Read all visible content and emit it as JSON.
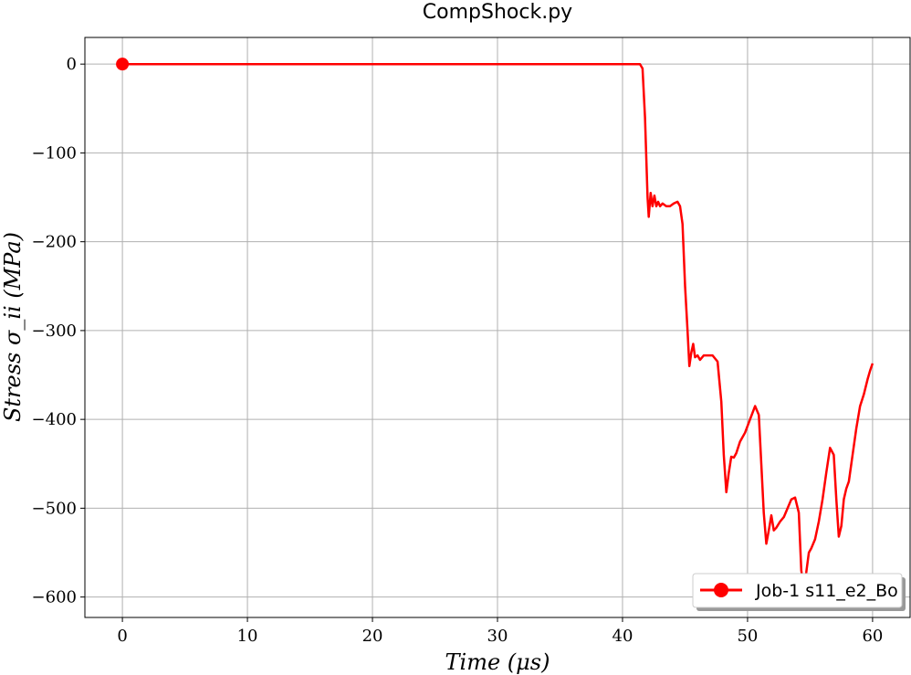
{
  "chart_data": {
    "type": "line",
    "title": "CompShock.py",
    "xlabel": "Time (μs)",
    "ylabel": "Stress σ_ii (MPa)",
    "xlim": [
      -3,
      63
    ],
    "ylim": [
      -623,
      30
    ],
    "x_ticks": [
      0,
      10,
      20,
      30,
      40,
      50,
      60
    ],
    "y_ticks": [
      0,
      -100,
      -200,
      -300,
      -400,
      -500,
      -600
    ],
    "x_tick_labels": [
      "0",
      "10",
      "20",
      "30",
      "40",
      "50",
      "60"
    ],
    "y_tick_labels": [
      "0",
      "−100",
      "−200",
      "−300",
      "−400",
      "−500",
      "−600"
    ],
    "grid": true,
    "legend_position": "bottom-right",
    "colors": {
      "series": "#ff0000",
      "grid": "#b0b0b0",
      "frame": "#000000"
    },
    "series": [
      {
        "name": "Job-1 s11_e2_Bo",
        "marker": "circle-first-point",
        "x": [
          0,
          10,
          20,
          30,
          41.4,
          41.6,
          41.8,
          42.0,
          42.1,
          42.25,
          42.4,
          42.55,
          42.7,
          42.85,
          43.0,
          43.2,
          43.5,
          43.8,
          44.1,
          44.4,
          44.6,
          44.8,
          45.0,
          45.2,
          45.35,
          45.5,
          45.65,
          45.8,
          46.0,
          46.2,
          46.5,
          46.8,
          47.2,
          47.6,
          47.9,
          48.1,
          48.3,
          48.5,
          48.7,
          48.9,
          49.1,
          49.4,
          49.8,
          50.2,
          50.6,
          50.9,
          51.1,
          51.3,
          51.5,
          51.7,
          51.9,
          52.1,
          52.3,
          52.6,
          52.9,
          53.2,
          53.5,
          53.8,
          54.1,
          54.3,
          54.5,
          54.7,
          54.9,
          55.1,
          55.4,
          55.7,
          56.0,
          56.3,
          56.6,
          56.9,
          57.1,
          57.3,
          57.5,
          57.7,
          57.9,
          58.1,
          58.4,
          58.7,
          59.0,
          59.3,
          59.6,
          59.8,
          60.0
        ],
        "y": [
          0,
          0,
          0,
          0,
          0,
          -5,
          -60,
          -150,
          -172,
          -145,
          -160,
          -148,
          -160,
          -155,
          -160,
          -157,
          -160,
          -160,
          -157,
          -155,
          -160,
          -180,
          -250,
          -300,
          -340,
          -325,
          -315,
          -330,
          -328,
          -333,
          -328,
          -328,
          -328,
          -335,
          -380,
          -440,
          -482,
          -460,
          -442,
          -443,
          -438,
          -425,
          -415,
          -400,
          -385,
          -395,
          -450,
          -505,
          -540,
          -525,
          -508,
          -525,
          -522,
          -515,
          -510,
          -500,
          -490,
          -488,
          -505,
          -570,
          -590,
          -572,
          -550,
          -545,
          -535,
          -515,
          -490,
          -460,
          -432,
          -440,
          -490,
          -532,
          -520,
          -490,
          -478,
          -470,
          -440,
          -410,
          -385,
          -372,
          -355,
          -345,
          -337
        ]
      }
    ]
  }
}
